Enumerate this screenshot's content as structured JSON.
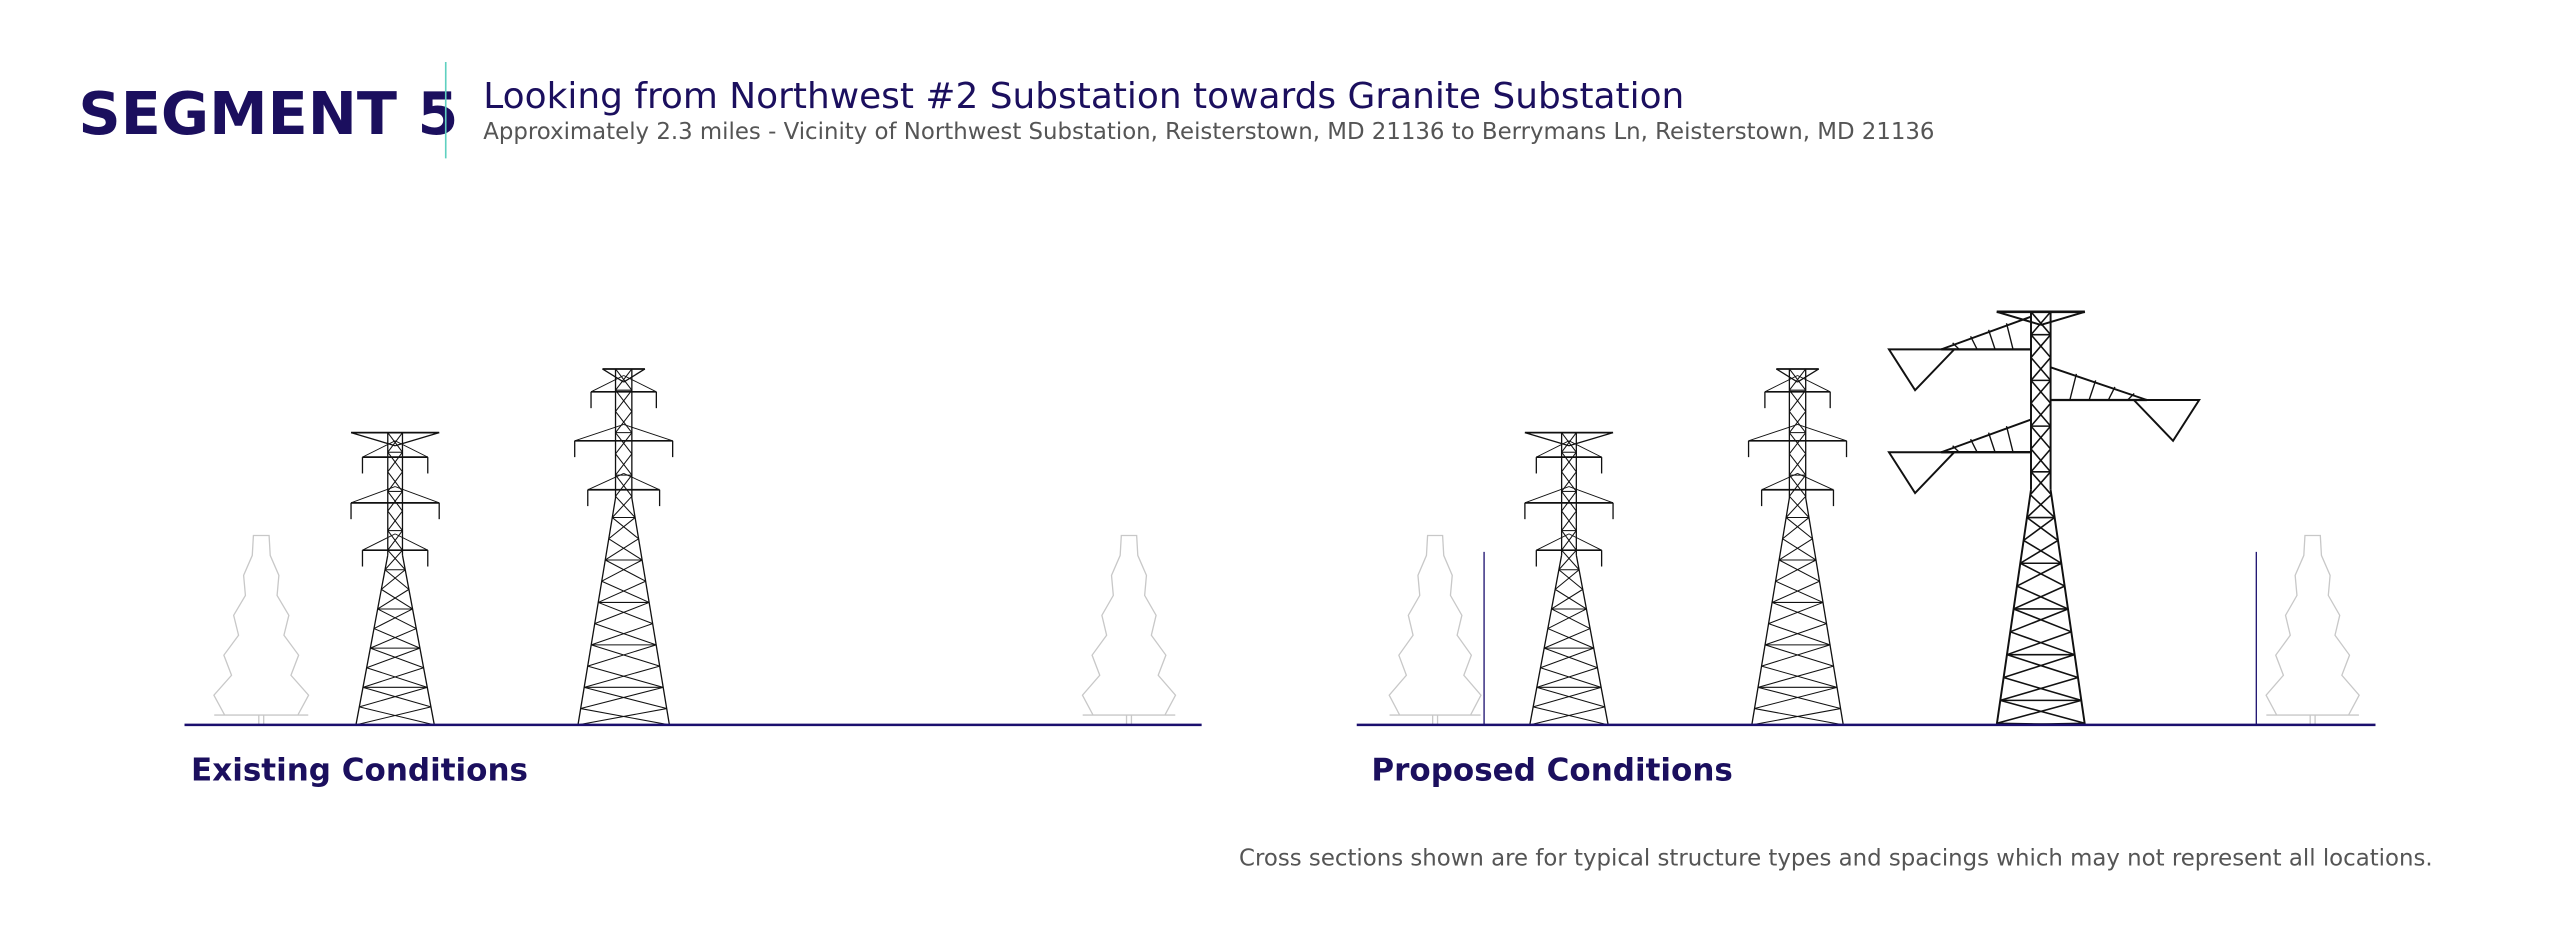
{
  "header": {
    "segment": "SEGMENT 5",
    "title": "Looking from Northwest #2 Substation towards Granite Substation",
    "subtitle": "Approximately 2.3 miles - Vicinity of Northwest Substation, Reisterstown, MD 21136 to Berrymans Ln, Reisterstown, MD 21136"
  },
  "panels": {
    "existing": {
      "label": "Existing Conditions"
    },
    "proposed": {
      "label": "Proposed Conditions"
    }
  },
  "footer": {
    "note": "Cross sections shown are for typical structure types and spacings which may not represent all locations."
  },
  "colors": {
    "navy": "#1b0f5e",
    "accent_line": "#5fd0c0",
    "ground": "#1b0f6e",
    "tower": "#111111",
    "tree": "#c8c8c8"
  }
}
